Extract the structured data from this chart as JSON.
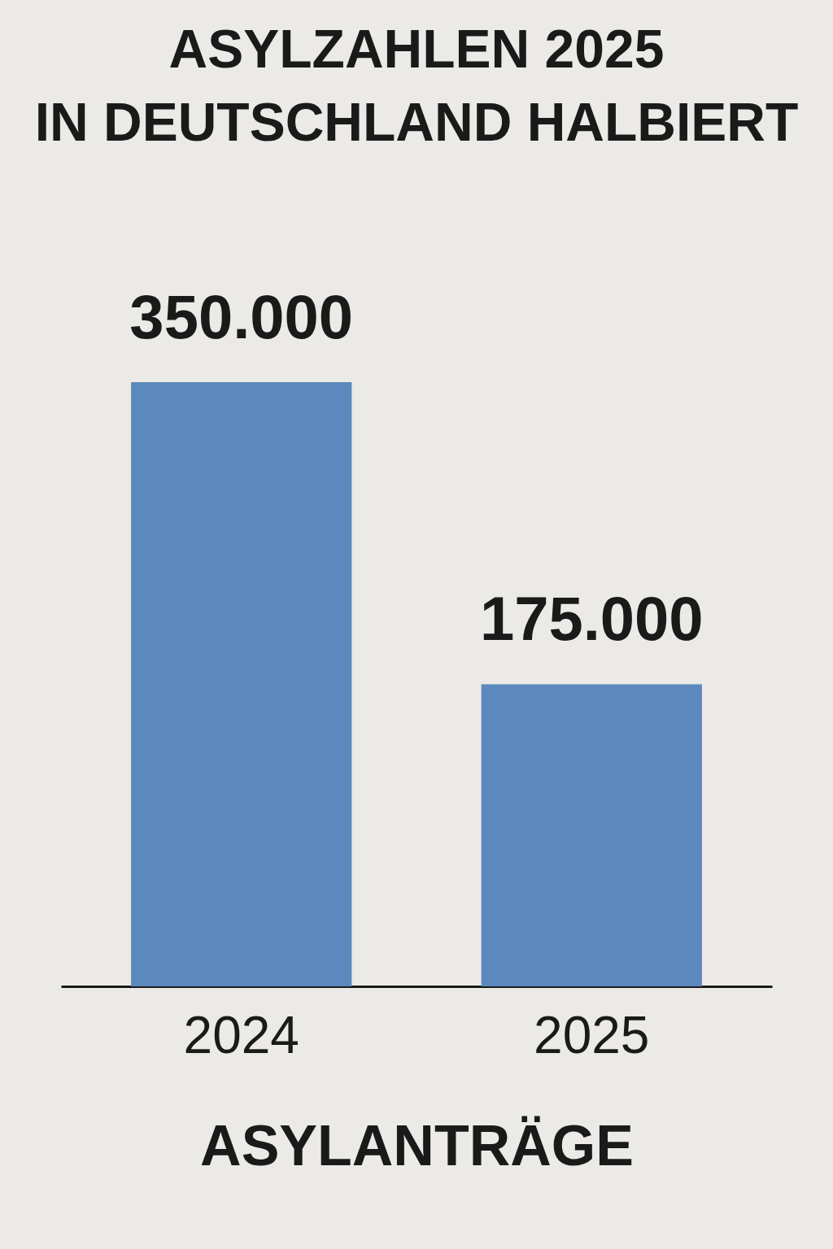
{
  "chart_data": {
    "type": "bar",
    "title": [
      "ASYLZAHLEN 2025",
      "IN DEUTSCHLAND HALBIERT"
    ],
    "xlabel": "ASYLANTRÄGE",
    "categories": [
      "2024",
      "2025"
    ],
    "values": [
      350000,
      175000
    ],
    "value_labels": [
      "350.000",
      "175.000"
    ],
    "color": "#5b88bd",
    "grid": false
  }
}
